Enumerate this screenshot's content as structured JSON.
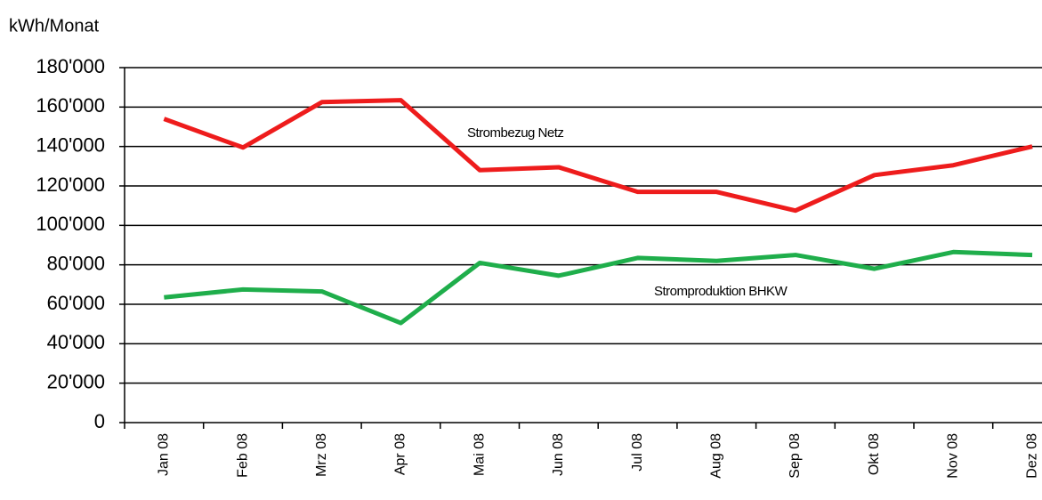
{
  "chart_data": {
    "type": "line",
    "y_label": "kWh/Monat",
    "categories": [
      "Jan 08",
      "Feb 08",
      "Mrz 08",
      "Apr 08",
      "Mai 08",
      "Jun 08",
      "Jul 08",
      "Aug 08",
      "Sep 08",
      "Okt 08",
      "Nov 08",
      "Dez 08"
    ],
    "series": [
      {
        "name": "Strombezug Netz",
        "color": "#ee1c1c",
        "values": [
          154000,
          139500,
          162500,
          163500,
          128000,
          129500,
          117000,
          117000,
          107500,
          125500,
          130500,
          140000
        ]
      },
      {
        "name": "Stromproduktion BHKW",
        "color": "#1fae4b",
        "values": [
          63500,
          67500,
          66500,
          50500,
          81000,
          74500,
          83500,
          82000,
          85000,
          78000,
          86500,
          85000
        ]
      }
    ],
    "ylim": [
      0,
      180000
    ],
    "yticks": [
      0,
      {
        "value": 20000,
        "label": "20'000"
      },
      {
        "value": 40000,
        "label": "40'000"
      },
      {
        "value": 60000,
        "label": "60'000"
      },
      {
        "value": 80000,
        "label": "80'000"
      },
      {
        "value": 100000,
        "label": "100'000"
      },
      {
        "value": 120000,
        "label": "120'000"
      },
      {
        "value": 140000,
        "label": "140'000"
      },
      {
        "value": 160000,
        "label": "160'000"
      },
      {
        "value": 180000,
        "label": "180'000"
      }
    ],
    "grid": true
  }
}
